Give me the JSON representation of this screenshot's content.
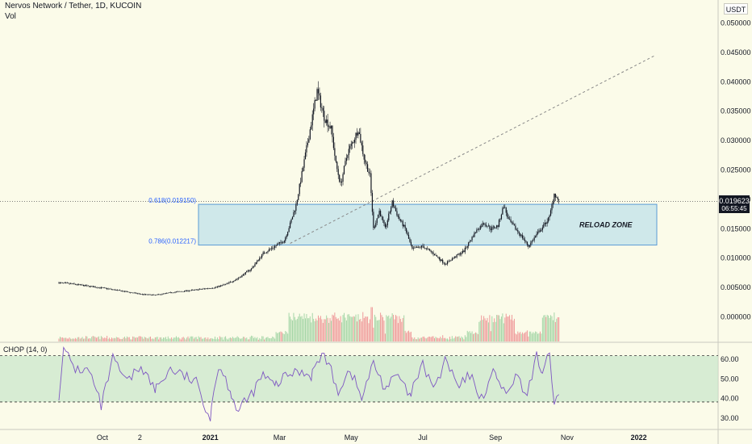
{
  "header": {
    "title": "Nervos Network / Tether, 1D, KUCOIN",
    "volume_label": "Vol",
    "currency": "USDT"
  },
  "chart_data": [
    {
      "type": "candlestick",
      "title": "Nervos Network / Tether, 1D, KUCOIN",
      "y_ticks": [
        "0.050000",
        "0.045000",
        "0.040000",
        "0.035000",
        "0.030000",
        "0.025000",
        "0.020000",
        "0.015000",
        "0.010000",
        "0.005000",
        "0.000000"
      ],
      "ylim": [
        0.0,
        0.05
      ],
      "x_ticks": [
        "Oct",
        "2",
        "2021",
        "Mar",
        "May",
        "Jul",
        "Sep",
        "Nov",
        "2022"
      ],
      "price_path": [
        [
          "2020-08-25",
          0.0058
        ],
        [
          "2020-09-05",
          0.0056
        ],
        [
          "2020-09-20",
          0.0052
        ],
        [
          "2020-10-05",
          0.0048
        ],
        [
          "2020-10-20",
          0.0043
        ],
        [
          "2020-11-05",
          0.0038
        ],
        [
          "2020-11-15",
          0.0037
        ],
        [
          "2020-12-01",
          0.0042
        ],
        [
          "2020-12-20",
          0.0046
        ],
        [
          "2021-01-05",
          0.005
        ],
        [
          "2021-01-15",
          0.0056
        ],
        [
          "2021-01-25",
          0.0066
        ],
        [
          "2021-02-05",
          0.0082
        ],
        [
          "2021-02-15",
          0.0108
        ],
        [
          "2021-02-25",
          0.012
        ],
        [
          "2021-03-05",
          0.013
        ],
        [
          "2021-03-10",
          0.0158
        ],
        [
          "2021-03-15",
          0.019
        ],
        [
          "2021-03-22",
          0.0265
        ],
        [
          "2021-03-28",
          0.033
        ],
        [
          "2021-04-02",
          0.0385
        ],
        [
          "2021-04-08",
          0.034
        ],
        [
          "2021-04-14",
          0.032
        ],
        [
          "2021-04-18",
          0.026
        ],
        [
          "2021-04-22",
          0.0225
        ],
        [
          "2021-04-28",
          0.028
        ],
        [
          "2021-05-03",
          0.03
        ],
        [
          "2021-05-07",
          0.032
        ],
        [
          "2021-05-12",
          0.027
        ],
        [
          "2021-05-17",
          0.024
        ],
        [
          "2021-05-20",
          0.015
        ],
        [
          "2021-05-25",
          0.018
        ],
        [
          "2021-05-30",
          0.015
        ],
        [
          "2021-06-05",
          0.0195
        ],
        [
          "2021-06-10",
          0.017
        ],
        [
          "2021-06-16",
          0.015
        ],
        [
          "2021-06-22",
          0.0115
        ],
        [
          "2021-07-01",
          0.012
        ],
        [
          "2021-07-10",
          0.0108
        ],
        [
          "2021-07-20",
          0.009
        ],
        [
          "2021-07-27",
          0.01
        ],
        [
          "2021-08-05",
          0.0112
        ],
        [
          "2021-08-15",
          0.0145
        ],
        [
          "2021-08-22",
          0.016
        ],
        [
          "2021-08-28",
          0.015
        ],
        [
          "2021-09-03",
          0.0155
        ],
        [
          "2021-09-08",
          0.019
        ],
        [
          "2021-09-12",
          0.0165
        ],
        [
          "2021-09-18",
          0.015
        ],
        [
          "2021-09-24",
          0.0135
        ],
        [
          "2021-09-29",
          0.012
        ],
        [
          "2021-10-06",
          0.014
        ],
        [
          "2021-10-12",
          0.0155
        ],
        [
          "2021-10-17",
          0.017
        ],
        [
          "2021-10-21",
          0.021
        ],
        [
          "2021-10-25",
          0.01962
        ]
      ],
      "last_price": "0.019623",
      "countdown": "06:55:45",
      "fib_levels": [
        {
          "label": "0.618(0.019150)",
          "value": 0.01915
        },
        {
          "label": "0.786(0.012217)",
          "value": 0.012217
        }
      ],
      "zone_label": "RELOAD ZONE",
      "trendline": {
        "start": [
          "2021-03-10",
          0.0125
        ],
        "end": [
          "2022-01-15",
          0.0445
        ]
      },
      "volume_color_up": "#a5d6a7",
      "volume_color_down": "#ef9a9a"
    },
    {
      "type": "line",
      "title": "CHOP (14, 0)",
      "y_ticks": [
        "60.00",
        "50.00",
        "40.00",
        "30.00"
      ],
      "ylim": [
        25,
        67
      ],
      "band": [
        38.2,
        61.8
      ],
      "line_color": "#7e57c2",
      "band_color": "#c8e6c9",
      "path": [
        [
          "2020-08-25",
          42
        ],
        [
          "2020-08-29",
          65
        ],
        [
          "2020-09-08",
          55
        ],
        [
          "2020-09-20",
          54
        ],
        [
          "2020-09-30",
          36
        ],
        [
          "2020-10-10",
          60
        ],
        [
          "2020-10-22",
          48
        ],
        [
          "2020-11-03",
          57
        ],
        [
          "2020-11-15",
          44
        ],
        [
          "2020-11-28",
          55
        ],
        [
          "2020-12-08",
          52
        ],
        [
          "2020-12-20",
          48
        ],
        [
          "2021-01-01",
          30
        ],
        [
          "2021-01-08",
          57
        ],
        [
          "2021-01-18",
          45
        ],
        [
          "2021-01-25",
          33
        ],
        [
          "2021-02-05",
          42
        ],
        [
          "2021-02-15",
          52
        ],
        [
          "2021-02-25",
          46
        ],
        [
          "2021-03-08",
          52
        ],
        [
          "2021-03-18",
          54
        ],
        [
          "2021-03-28",
          52
        ],
        [
          "2021-04-08",
          63
        ],
        [
          "2021-04-20",
          44
        ],
        [
          "2021-04-30",
          55
        ],
        [
          "2021-05-10",
          40
        ],
        [
          "2021-05-20",
          58
        ],
        [
          "2021-05-30",
          45
        ],
        [
          "2021-06-10",
          52
        ],
        [
          "2021-06-20",
          40
        ],
        [
          "2021-07-01",
          57
        ],
        [
          "2021-07-12",
          45
        ],
        [
          "2021-07-20",
          60
        ],
        [
          "2021-08-01",
          45
        ],
        [
          "2021-08-10",
          52
        ],
        [
          "2021-08-20",
          40
        ],
        [
          "2021-09-01",
          55
        ],
        [
          "2021-09-10",
          40
        ],
        [
          "2021-09-18",
          52
        ],
        [
          "2021-09-28",
          40
        ],
        [
          "2021-10-06",
          64
        ],
        [
          "2021-10-10",
          52
        ],
        [
          "2021-10-17",
          62
        ],
        [
          "2021-10-21",
          34
        ],
        [
          "2021-10-25",
          42
        ]
      ]
    }
  ]
}
